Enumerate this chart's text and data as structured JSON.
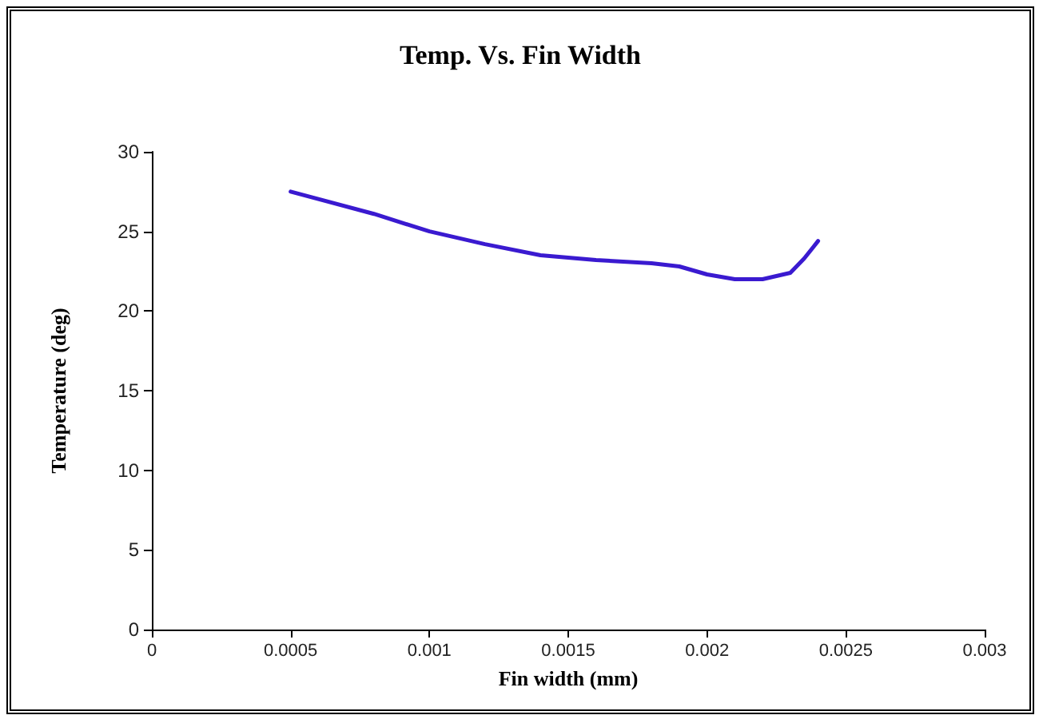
{
  "chart_data": {
    "type": "line",
    "title": "Temp. Vs. Fin Width",
    "xlabel": "Fin width (mm)",
    "ylabel": "Temperature (deg)",
    "x": [
      0.0005,
      0.0008,
      0.001,
      0.0012,
      0.0014,
      0.0016,
      0.0018,
      0.0019,
      0.002,
      0.0021,
      0.0022,
      0.0023,
      0.00235,
      0.0024
    ],
    "series": [
      {
        "color": "#3a1ad0",
        "values": [
          27.5,
          26.1,
          25,
          24.2,
          23.5,
          23.2,
          23,
          22.8,
          22.3,
          22,
          22,
          22.4,
          23.3,
          24.4
        ]
      }
    ],
    "xlim": [
      0,
      0.003
    ],
    "xticks": [
      0,
      0.0005,
      0.001,
      0.0015,
      0.002,
      0.0025,
      0.003
    ],
    "ylim": [
      0,
      30
    ],
    "yticks": [
      0,
      5,
      10,
      15,
      20,
      25,
      30
    ],
    "grid": false,
    "marker": "none",
    "line_style": "solid"
  }
}
